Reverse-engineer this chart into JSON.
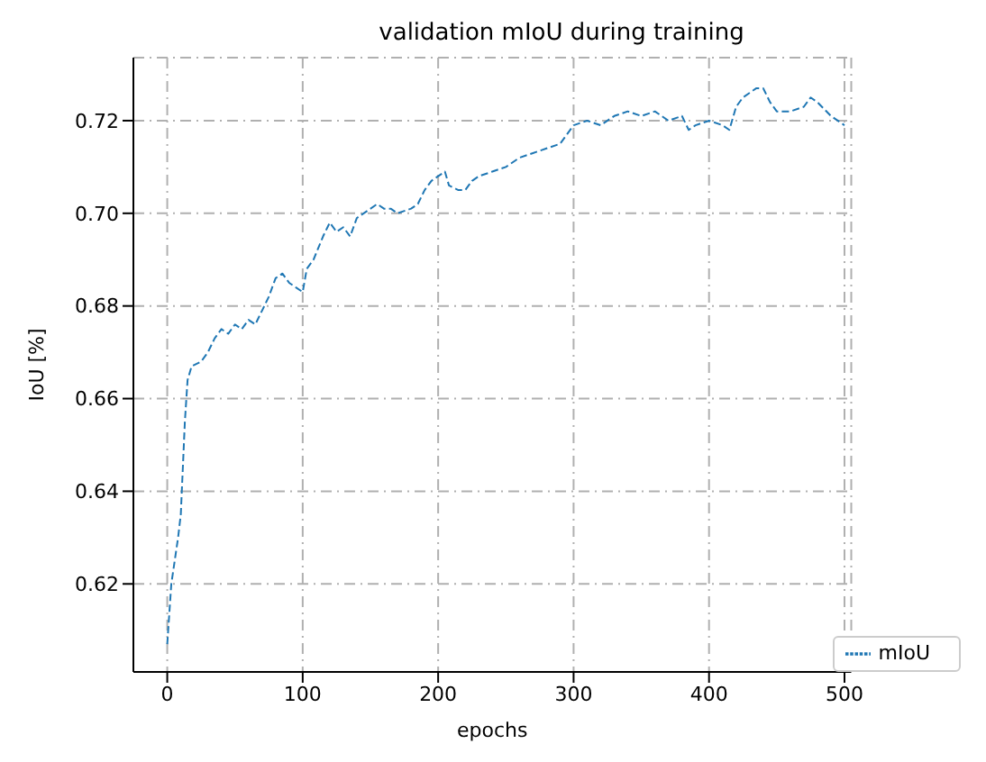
{
  "chart_data": {
    "type": "line",
    "title": "validation mIoU during training",
    "xlabel": "epochs",
    "ylabel": "IoU [%]",
    "x": [
      0,
      3,
      8,
      10,
      13,
      15,
      18,
      25,
      30,
      35,
      40,
      45,
      50,
      55,
      60,
      65,
      70,
      75,
      80,
      85,
      90,
      95,
      100,
      103,
      108,
      115,
      120,
      125,
      130,
      135,
      140,
      145,
      155,
      160,
      165,
      170,
      180,
      185,
      190,
      195,
      200,
      205,
      208,
      215,
      220,
      225,
      230,
      240,
      250,
      260,
      270,
      280,
      290,
      295,
      300,
      310,
      320,
      330,
      340,
      350,
      360,
      370,
      380,
      385,
      390,
      400,
      410,
      415,
      420,
      425,
      435,
      440,
      445,
      450,
      460,
      470,
      475,
      480,
      490,
      495,
      500
    ],
    "series": [
      {
        "name": "mIoU",
        "color": "#1f77b4",
        "values": [
          0.607,
          0.62,
          0.63,
          0.635,
          0.655,
          0.664,
          0.667,
          0.668,
          0.67,
          0.673,
          0.675,
          0.674,
          0.676,
          0.675,
          0.677,
          0.676,
          0.679,
          0.682,
          0.686,
          0.687,
          0.685,
          0.684,
          0.683,
          0.688,
          0.69,
          0.695,
          0.698,
          0.696,
          0.697,
          0.695,
          0.699,
          0.7,
          0.702,
          0.701,
          0.701,
          0.7,
          0.701,
          0.702,
          0.705,
          0.707,
          0.708,
          0.709,
          0.706,
          0.705,
          0.705,
          0.707,
          0.708,
          0.709,
          0.71,
          0.712,
          0.713,
          0.714,
          0.715,
          0.717,
          0.719,
          0.72,
          0.719,
          0.721,
          0.722,
          0.721,
          0.722,
          0.72,
          0.721,
          0.718,
          0.719,
          0.72,
          0.719,
          0.718,
          0.723,
          0.725,
          0.727,
          0.727,
          0.724,
          0.722,
          0.722,
          0.723,
          0.725,
          0.724,
          0.721,
          0.72,
          0.719
        ]
      }
    ],
    "xlim": [
      -25,
      505
    ],
    "xticks": [
      0,
      100,
      200,
      300,
      400,
      500
    ],
    "ylim": [
      0.601,
      0.7336
    ],
    "yticks": [
      {
        "value": 0.62,
        "label": "0.62"
      },
      {
        "value": 0.64,
        "label": "0.64"
      },
      {
        "value": 0.66,
        "label": "0.66"
      },
      {
        "value": 0.68,
        "label": "0.68"
      },
      {
        "value": 0.7,
        "label": "0.70"
      },
      {
        "value": 0.72,
        "label": "0.72"
      }
    ],
    "grid": true,
    "legend": "bottom right",
    "line_style": "dashed",
    "marker": "none"
  }
}
